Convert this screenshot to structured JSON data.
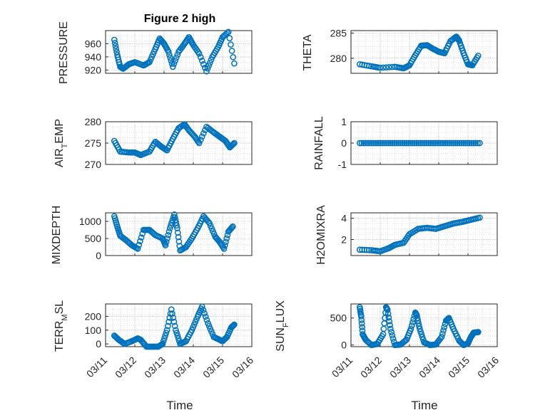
{
  "chart_data": {
    "type": "scatter",
    "title": "Figure 2 high",
    "marker_color": "#0072BD",
    "marker": "open-circle",
    "grid": "major-and-minor",
    "x_tick_labels": [
      "03/11",
      "03/12",
      "03/13",
      "03/14",
      "03/15",
      "03/16"
    ],
    "xlabel": "Time",
    "panels": [
      {
        "id": "pressure",
        "ylabel": "PRESSURE",
        "ylim": [
          915,
          980
        ],
        "yticks": [
          {
            "v": 920,
            "label": "920"
          },
          {
            "v": 940,
            "label": "940"
          },
          {
            "v": 960,
            "label": "960"
          }
        ],
        "series": [
          [
            11.3,
            966
          ],
          [
            11.4,
            943
          ],
          [
            11.5,
            925
          ],
          [
            11.6,
            922
          ],
          [
            11.8,
            929
          ],
          [
            12.0,
            932
          ],
          [
            12.3,
            927
          ],
          [
            12.5,
            932
          ],
          [
            12.7,
            952
          ],
          [
            12.85,
            968
          ],
          [
            13.0,
            960
          ],
          [
            13.15,
            948
          ],
          [
            13.3,
            925
          ],
          [
            13.5,
            948
          ],
          [
            13.7,
            960
          ],
          [
            13.85,
            970
          ],
          [
            14.0,
            958
          ],
          [
            14.2,
            945
          ],
          [
            14.45,
            918
          ],
          [
            14.65,
            940
          ],
          [
            14.85,
            955
          ],
          [
            15.0,
            970
          ],
          [
            15.2,
            978
          ],
          [
            15.4,
            930
          ]
        ]
      },
      {
        "id": "theta",
        "ylabel": "THETA",
        "ylim": [
          277,
          285.5
        ],
        "yticks": [
          {
            "v": 280,
            "label": "280"
          },
          {
            "v": 285,
            "label": "285"
          }
        ],
        "series": [
          [
            11.3,
            278.8
          ],
          [
            11.7,
            278.4
          ],
          [
            12.0,
            278.1
          ],
          [
            12.5,
            278.3
          ],
          [
            12.8,
            278.0
          ],
          [
            13.0,
            278.6
          ],
          [
            13.2,
            280.6
          ],
          [
            13.4,
            282.5
          ],
          [
            13.6,
            282.6
          ],
          [
            13.8,
            281.9
          ],
          [
            14.0,
            281.3
          ],
          [
            14.2,
            281.0
          ],
          [
            14.4,
            283.4
          ],
          [
            14.6,
            284.3
          ],
          [
            14.7,
            283.5
          ],
          [
            14.85,
            281.0
          ],
          [
            15.0,
            278.8
          ],
          [
            15.15,
            278.6
          ],
          [
            15.35,
            280.5
          ]
        ]
      },
      {
        "id": "air_temp",
        "ylabel": "AIR_TEMP",
        "ylim": [
          270,
          280
        ],
        "yticks": [
          {
            "v": 270,
            "label": "270"
          },
          {
            "v": 275,
            "label": "275"
          },
          {
            "v": 280,
            "label": "280"
          }
        ],
        "series": [
          [
            11.3,
            275.5
          ],
          [
            11.5,
            273.0
          ],
          [
            11.8,
            272.8
          ],
          [
            12.0,
            272.8
          ],
          [
            12.2,
            272.2
          ],
          [
            12.5,
            273.0
          ],
          [
            12.7,
            275.3
          ],
          [
            12.9,
            274.2
          ],
          [
            13.1,
            273.3
          ],
          [
            13.3,
            276.0
          ],
          [
            13.5,
            278.5
          ],
          [
            13.7,
            279.4
          ],
          [
            13.85,
            278.0
          ],
          [
            14.05,
            276.5
          ],
          [
            14.2,
            275.0
          ],
          [
            14.45,
            278.8
          ],
          [
            14.7,
            277.5
          ],
          [
            14.9,
            276.5
          ],
          [
            15.1,
            275.5
          ],
          [
            15.25,
            274.0
          ],
          [
            15.4,
            275.0
          ]
        ]
      },
      {
        "id": "rainfall",
        "ylabel": "RAINFALL",
        "ylim": [
          -1,
          1
        ],
        "yticks": [
          {
            "v": -1,
            "label": "-1"
          },
          {
            "v": 0,
            "label": "0"
          },
          {
            "v": 1,
            "label": "1"
          }
        ],
        "series_range": {
          "x_start": 11.3,
          "x_end": 15.4,
          "y": 0,
          "count": 60
        }
      },
      {
        "id": "mixdepth",
        "ylabel": "MIXDEPTH",
        "ylim": [
          0,
          1250
        ],
        "yticks": [
          {
            "v": 0,
            "label": "0"
          },
          {
            "v": 500,
            "label": "500"
          },
          {
            "v": 1000,
            "label": "1000"
          }
        ],
        "series": [
          [
            11.3,
            1150
          ],
          [
            11.4,
            850
          ],
          [
            11.5,
            580
          ],
          [
            11.7,
            450
          ],
          [
            11.9,
            300
          ],
          [
            12.1,
            200
          ],
          [
            12.3,
            750
          ],
          [
            12.5,
            750
          ],
          [
            12.7,
            600
          ],
          [
            12.95,
            500
          ],
          [
            13.05,
            300
          ],
          [
            13.2,
            800
          ],
          [
            13.35,
            1200
          ],
          [
            13.45,
            800
          ],
          [
            13.55,
            150
          ],
          [
            13.75,
            250
          ],
          [
            13.95,
            500
          ],
          [
            14.15,
            800
          ],
          [
            14.35,
            1150
          ],
          [
            14.55,
            950
          ],
          [
            14.75,
            550
          ],
          [
            14.9,
            400
          ],
          [
            15.05,
            200
          ],
          [
            15.2,
            700
          ],
          [
            15.35,
            850
          ]
        ]
      },
      {
        "id": "h2omixra",
        "ylabel": "H2OMIXRA",
        "ylim": [
          0.5,
          4.5
        ],
        "yticks": [
          {
            "v": 2,
            "label": "2"
          },
          {
            "v": 4,
            "label": "4"
          }
        ],
        "series": [
          [
            11.3,
            1.05
          ],
          [
            11.7,
            1.0
          ],
          [
            12.0,
            0.9
          ],
          [
            12.3,
            1.2
          ],
          [
            12.5,
            1.5
          ],
          [
            12.8,
            1.7
          ],
          [
            13.0,
            2.5
          ],
          [
            13.3,
            3.0
          ],
          [
            13.6,
            3.1
          ],
          [
            13.9,
            3.0
          ],
          [
            14.2,
            3.25
          ],
          [
            14.5,
            3.5
          ],
          [
            14.8,
            3.65
          ],
          [
            15.1,
            3.85
          ],
          [
            15.4,
            4.05
          ]
        ]
      },
      {
        "id": "terr_msl",
        "ylabel": "TERR_MSL",
        "ylim": [
          -20,
          290
        ],
        "yticks": [
          {
            "v": 0,
            "label": "0"
          },
          {
            "v": 100,
            "label": "100"
          },
          {
            "v": 200,
            "label": "200"
          }
        ],
        "series": [
          [
            11.3,
            60
          ],
          [
            11.45,
            30
          ],
          [
            11.65,
            0
          ],
          [
            11.9,
            20
          ],
          [
            12.1,
            40
          ],
          [
            12.2,
            30
          ],
          [
            12.4,
            -20
          ],
          [
            12.6,
            -20
          ],
          [
            12.8,
            -20
          ],
          [
            12.95,
            0
          ],
          [
            13.1,
            100
          ],
          [
            13.25,
            250
          ],
          [
            13.4,
            100
          ],
          [
            13.55,
            0
          ],
          [
            13.75,
            20
          ],
          [
            13.95,
            100
          ],
          [
            14.15,
            200
          ],
          [
            14.3,
            270
          ],
          [
            14.5,
            150
          ],
          [
            14.7,
            50
          ],
          [
            14.9,
            30
          ],
          [
            15.0,
            20
          ],
          [
            15.15,
            50
          ],
          [
            15.3,
            120
          ],
          [
            15.4,
            140
          ]
        ]
      },
      {
        "id": "sun_flux",
        "ylabel": "SUN_FLUX",
        "ylim": [
          -30,
          760
        ],
        "yticks": [
          {
            "v": 0,
            "label": "0"
          },
          {
            "v": 500,
            "label": "500"
          }
        ],
        "series": [
          [
            11.3,
            700
          ],
          [
            11.35,
            530
          ],
          [
            11.4,
            200
          ],
          [
            11.5,
            100
          ],
          [
            11.7,
            0
          ],
          [
            11.9,
            20
          ],
          [
            12.1,
            200
          ],
          [
            12.2,
            700
          ],
          [
            12.25,
            650
          ],
          [
            12.35,
            300
          ],
          [
            12.5,
            0
          ],
          [
            12.7,
            10
          ],
          [
            12.9,
            100
          ],
          [
            13.05,
            300
          ],
          [
            13.2,
            600
          ],
          [
            13.25,
            550
          ],
          [
            13.35,
            300
          ],
          [
            13.5,
            50
          ],
          [
            13.7,
            0
          ],
          [
            13.9,
            10
          ],
          [
            14.1,
            150
          ],
          [
            14.25,
            450
          ],
          [
            14.35,
            500
          ],
          [
            14.5,
            300
          ],
          [
            14.7,
            80
          ],
          [
            14.85,
            0
          ],
          [
            15.0,
            30
          ],
          [
            15.1,
            150
          ],
          [
            15.2,
            230
          ],
          [
            15.35,
            240
          ]
        ]
      }
    ]
  }
}
